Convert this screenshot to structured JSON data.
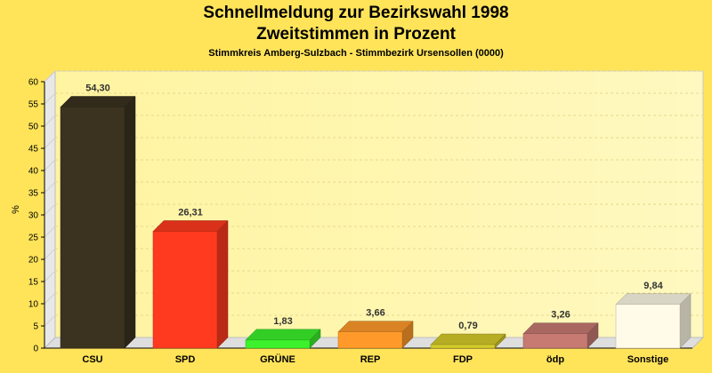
{
  "chart_data": {
    "type": "bar",
    "title": "Schnellmeldung zur Bezirkswahl 1998",
    "subtitle": "Zweitstimmen in Prozent",
    "subtitle2": "Stimmkreis Amberg-Sulzbach - Stimmbezirk Ursensollen (0000)",
    "ylabel": "%",
    "xlabel": "",
    "ylim": [
      0,
      60
    ],
    "yticks": [
      0,
      5,
      10,
      15,
      20,
      25,
      30,
      35,
      40,
      45,
      50,
      55,
      60
    ],
    "grid": true,
    "categories": [
      "CSU",
      "SPD",
      "GRÜNE",
      "REP",
      "FDP",
      "ödp",
      "Sonstige"
    ],
    "values": [
      54.3,
      26.31,
      1.83,
      3.66,
      0.79,
      3.26,
      9.84
    ],
    "value_labels": [
      "54,30",
      "26,31",
      "1,83",
      "3,66",
      "0,79",
      "3,26",
      "9,84"
    ],
    "colors": [
      "#3b3320",
      "#ff3a1f",
      "#3cf22c",
      "#ff9a2a",
      "#d6cc2a",
      "#c67a72",
      "#fffbe8"
    ]
  }
}
